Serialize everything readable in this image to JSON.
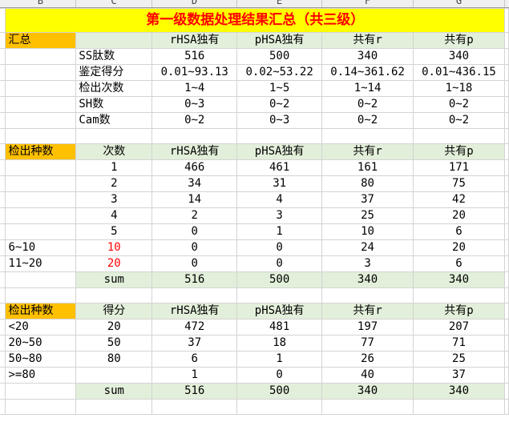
{
  "columns": [
    "B",
    "C",
    "D",
    "E",
    "F",
    "G"
  ],
  "title": "第一级数据处理结果汇总（共三级）",
  "colors": {
    "title_bg": "#ffff00",
    "title_text": "#ff0000",
    "section_label_bg": "#ffc000",
    "header_bg": "#e2efda",
    "highlight_text": "#ff0000"
  },
  "summary": {
    "label": "汇总",
    "headers": [
      "",
      "rHSA独有",
      "pHSA独有",
      "共有r",
      "共有p"
    ],
    "rows": [
      [
        "SS肽数",
        "516",
        "500",
        "340",
        "340"
      ],
      [
        "鉴定得分",
        "0.01~93.13",
        "0.02~53.22",
        "0.14~361.62",
        "0.01~436.15"
      ],
      [
        "检出次数",
        "1~4",
        "1~5",
        "1~14",
        "1~18"
      ],
      [
        "SH数",
        "0~3",
        "0~2",
        "0~2",
        "0~2"
      ],
      [
        "Cam数",
        "0~2",
        "0~3",
        "0~2",
        "0~2"
      ]
    ]
  },
  "counts": {
    "label": "检出种数",
    "headers": [
      "次数",
      "rHSA独有",
      "pHSA独有",
      "共有r",
      "共有p"
    ],
    "rows": [
      [
        "",
        "1",
        "466",
        "461",
        "161",
        "171"
      ],
      [
        "",
        "2",
        "34",
        "31",
        "80",
        "75"
      ],
      [
        "",
        "3",
        "14",
        "4",
        "37",
        "42"
      ],
      [
        "",
        "4",
        "2",
        "3",
        "25",
        "20"
      ],
      [
        "",
        "5",
        "0",
        "1",
        "10",
        "6"
      ],
      [
        "6~10",
        "10",
        "0",
        "0",
        "24",
        "20"
      ],
      [
        "11~20",
        "20",
        "0",
        "0",
        "3",
        "6"
      ]
    ],
    "red_rows": [
      5,
      6
    ],
    "sum": [
      "sum",
      "516",
      "500",
      "340",
      "340"
    ]
  },
  "scores": {
    "label": "检出种数",
    "headers": [
      "得分",
      "rHSA独有",
      "pHSA独有",
      "共有r",
      "共有p"
    ],
    "rows": [
      [
        "<20",
        "20",
        "472",
        "481",
        "197",
        "207"
      ],
      [
        "20~50",
        "50",
        "37",
        "18",
        "77",
        "71"
      ],
      [
        "50~80",
        "80",
        "6",
        "1",
        "26",
        "25"
      ],
      [
        ">=80",
        "",
        "1",
        "0",
        "40",
        "37"
      ]
    ],
    "sum": [
      "sum",
      "516",
      "500",
      "340",
      "340"
    ]
  }
}
